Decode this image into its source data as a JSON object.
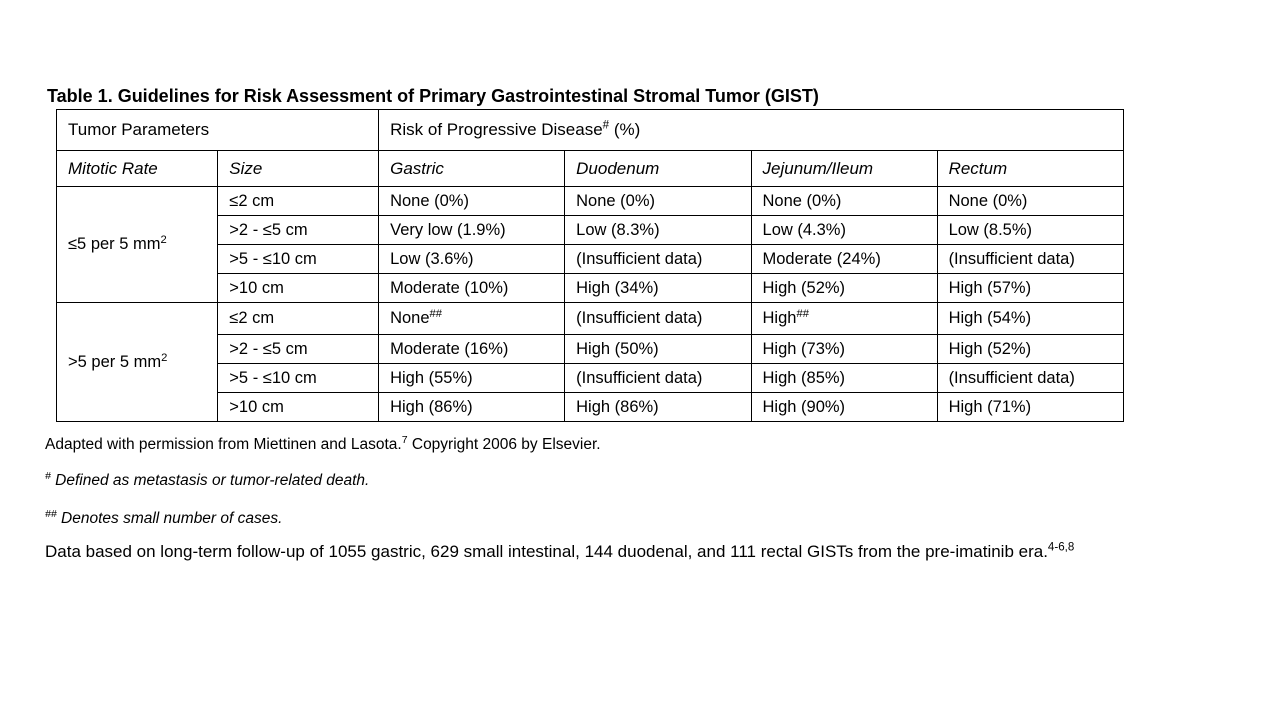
{
  "title": "Table 1. Guidelines for Risk Assessment of Primary Gastrointestinal Stromal Tumor (GIST)",
  "table": {
    "group_left": "Tumor Parameters",
    "group_right_main": "Risk of Progressive Disease",
    "group_right_mark": "#",
    "group_right_unit": " (%)",
    "columns": [
      "Mitotic Rate",
      "Size",
      "Gastric",
      "Duodenum",
      "Jejunum/Ileum",
      "Rectum"
    ],
    "groups": [
      {
        "mitotic_main": "≤5 per 5 mm",
        "mitotic_sup": "2",
        "rows": [
          {
            "size": "≤2 cm",
            "gastric": "None (0%)",
            "gastric_sup": "",
            "duodenum": "None (0%)",
            "jejunum": "None (0%)",
            "jejunum_sup": "",
            "rectum": "None (0%)"
          },
          {
            "size": ">2 - ≤5 cm",
            "gastric": "Very low (1.9%)",
            "gastric_sup": "",
            "duodenum": "Low (8.3%)",
            "jejunum": "Low (4.3%)",
            "jejunum_sup": "",
            "rectum": "Low (8.5%)"
          },
          {
            "size": ">5 - ≤10 cm",
            "gastric": "Low (3.6%)",
            "gastric_sup": "",
            "duodenum": "(Insufficient data)",
            "jejunum": "Moderate (24%)",
            "jejunum_sup": "",
            "rectum": "(Insufficient data)"
          },
          {
            "size": ">10 cm",
            "gastric": "Moderate (10%)",
            "gastric_sup": "",
            "duodenum": "High (34%)",
            "jejunum": "High (52%)",
            "jejunum_sup": "",
            "rectum": "High (57%)"
          }
        ]
      },
      {
        "mitotic_main": ">5 per 5 mm",
        "mitotic_sup": "2",
        "rows": [
          {
            "size": "≤2 cm",
            "gastric": "None",
            "gastric_sup": "##",
            "duodenum": "(Insufficient data)",
            "jejunum": "High",
            "jejunum_sup": "##",
            "rectum": "High (54%)"
          },
          {
            "size": ">2 - ≤5 cm",
            "gastric": "Moderate (16%)",
            "gastric_sup": "",
            "duodenum": "High (50%)",
            "jejunum": "High (73%)",
            "jejunum_sup": "",
            "rectum": "High (52%)"
          },
          {
            "size": ">5 - ≤10 cm",
            "gastric": "High (55%)",
            "gastric_sup": "",
            "duodenum": "(Insufficient data)",
            "jejunum": "High (85%)",
            "jejunum_sup": "",
            "rectum": "(Insufficient data)"
          },
          {
            "size": ">10 cm",
            "gastric": "High (86%)",
            "gastric_sup": "",
            "duodenum": "High (86%)",
            "jejunum": "High (90%)",
            "jejunum_sup": "",
            "rectum": "High (71%)"
          }
        ]
      }
    ]
  },
  "footnotes": {
    "adapted_main": "Adapted with permission from Miettinen and Lasota.",
    "adapted_ref": "7",
    "adapted_tail": " Copyright 2006 by Elsevier.",
    "hash_mark": "#",
    "hash_text": " Defined as metastasis or tumor-related death.",
    "double_hash_mark": "##",
    "double_hash_text": " Denotes small number of cases.",
    "data_main": "Data based on long-term follow-up of 1055 gastric, 629 small intestinal, 144 duodenal, and 111 rectal GISTs from the pre-imatinib era.",
    "data_ref": "4-6,8"
  }
}
